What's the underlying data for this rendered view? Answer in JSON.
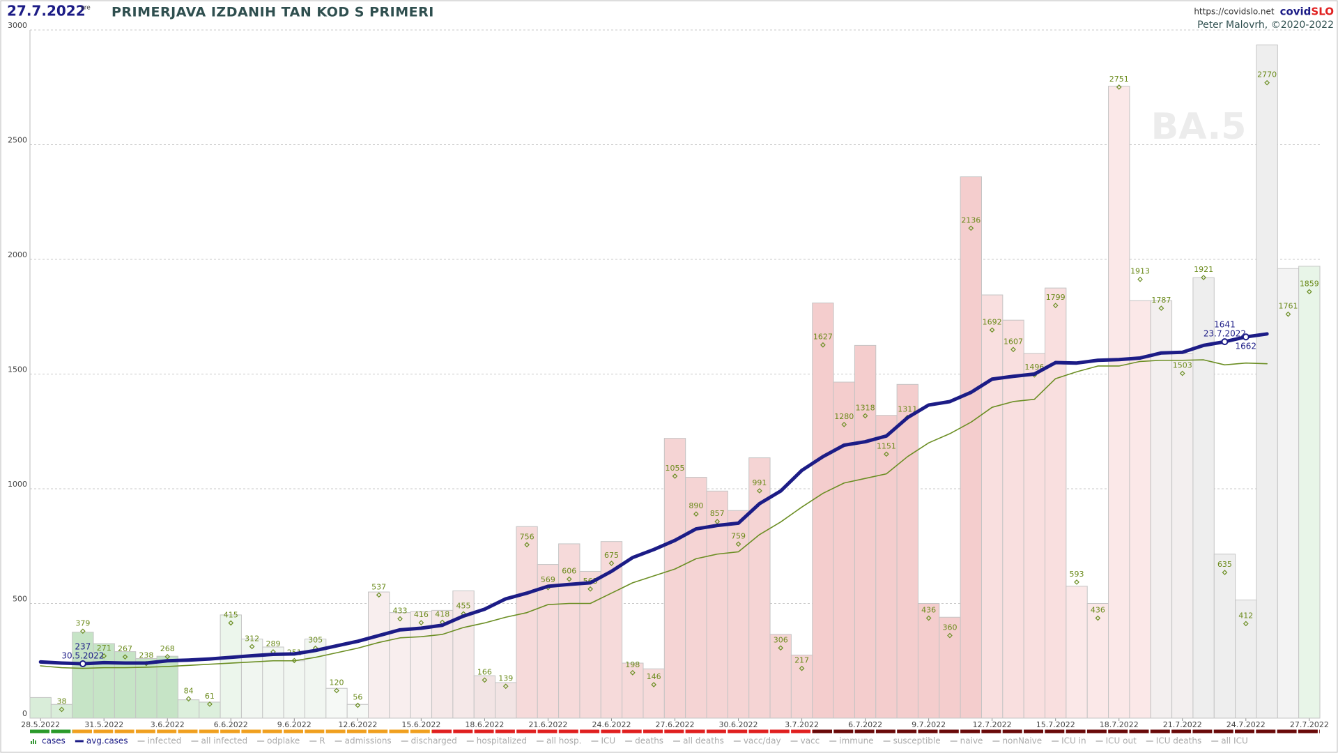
{
  "chart_data": {
    "type": "bar",
    "date": "27.7.2022",
    "weekday": "sre",
    "title": "PRIMERJAVA IZDANIH TAN KOD S PRIMERI",
    "url": "https://covidslo.net",
    "brand": "covid",
    "brand_accent": "SLO",
    "author": "Peter Malovrh, ©2020-2022",
    "watermark": "BA.5",
    "ylim": [
      0,
      3000
    ],
    "yticks": [
      0,
      500,
      1000,
      1500,
      2000,
      2500,
      3000
    ],
    "grid": true,
    "categories": [
      "28.5.2022",
      null,
      null,
      "31.5.2022",
      null,
      null,
      "3.6.2022",
      null,
      null,
      "6.6.2022",
      null,
      null,
      "9.6.2022",
      null,
      null,
      "12.6.2022",
      null,
      null,
      "15.6.2022",
      null,
      null,
      "18.6.2022",
      null,
      null,
      "21.6.2022",
      null,
      null,
      "24.6.2022",
      null,
      null,
      "27.6.2022",
      null,
      null,
      "30.6.2022",
      null,
      null,
      "3.7.2022",
      null,
      null,
      "6.7.2022",
      null,
      null,
      "9.7.2022",
      null,
      null,
      "12.7.2022",
      null,
      null,
      "15.7.2022",
      null,
      null,
      "18.7.2022",
      null,
      null,
      "21.7.2022",
      null,
      null,
      "24.7.2022",
      null,
      null,
      "27.7.2022"
    ],
    "series": [
      {
        "name": "cases",
        "type": "bar",
        "values": [
          90,
          60,
          375,
          325,
          290,
          260,
          270,
          80,
          70,
          450,
          345,
          310,
          250,
          345,
          130,
          60,
          550,
          460,
          465,
          470,
          555,
          185,
          155,
          835,
          670,
          760,
          640,
          770,
          240,
          215,
          1220,
          1050,
          990,
          905,
          1135,
          365,
          275,
          1810,
          1465,
          1625,
          1320,
          1455,
          500,
          440,
          2360,
          1845,
          1735,
          1590,
          1875,
          575,
          500,
          2755,
          1820,
          1820,
          1590,
          1920,
          715,
          515,
          2935,
          1960,
          1970
        ],
        "colors": [
          "#d9edd9",
          "#d9edd9",
          "#c6e4c6",
          "#c6e4c6",
          "#c6e4c6",
          "#c6e4c6",
          "#c6e4c6",
          "#dcefdc",
          "#dcefdc",
          "#ecf6ec",
          "#f1f6f1",
          "#f1f6f1",
          "#f1f6f1",
          "#f1f6f1",
          "#f6f9f6",
          "#f6f9f6",
          "#f8eeee",
          "#f8eeee",
          "#f8eeee",
          "#f5e8e8",
          "#f5e8e8",
          "#f2e4e4",
          "#f2e4e4",
          "#f6dada",
          "#f6dada",
          "#f6dada",
          "#f6dada",
          "#f6dada",
          "#f6dada",
          "#f6dada",
          "#f5d4d4",
          "#f5d4d4",
          "#f5d4d4",
          "#f5d4d4",
          "#f5d4d4",
          "#f5d4d4",
          "#f5d4d4",
          "#f4cdcd",
          "#f4cdcd",
          "#f4cdcd",
          "#f4cdcd",
          "#f4cdcd",
          "#f4cdcd",
          "#f4cdcd",
          "#f4cdcd",
          "#f9dfdf",
          "#f9dfdf",
          "#f9dfdf",
          "#f9dfdf",
          "#fbe8e8",
          "#fbe8e8",
          "#fbe8e8",
          "#fbe8e8",
          "#f3efef",
          "#f3efef",
          "#eeeeee",
          "#eeeeee",
          "#eeeeee",
          "#eeeeee",
          "#f3f3f3",
          "#e8f5e8"
        ],
        "legend_color": "#3a9a3a"
      },
      {
        "type": "scatter",
        "color": "#6b8e23",
        "values": [
          null,
          38,
          379,
          271,
          267,
          238,
          268,
          84,
          61,
          415,
          312,
          289,
          251,
          305,
          120,
          56,
          537,
          433,
          416,
          418,
          455,
          166,
          139,
          756,
          569,
          606,
          563,
          675,
          198,
          146,
          1055,
          890,
          857,
          759,
          991,
          306,
          217,
          1627,
          1280,
          1318,
          1151,
          1311,
          436,
          360,
          2136,
          1692,
          1607,
          1496,
          1799,
          593,
          436,
          2751,
          1913,
          1787,
          1503,
          1921,
          635,
          412,
          2770,
          1761,
          1859
        ]
      },
      {
        "name": "avg.cases",
        "type": "line",
        "color": "#1c1c86",
        "width": 5,
        "values": [
          245,
          240,
          237,
          242,
          240,
          240,
          250,
          253,
          258,
          265,
          272,
          278,
          280,
          295,
          315,
          335,
          360,
          385,
          392,
          405,
          445,
          475,
          520,
          545,
          575,
          583,
          590,
          640,
          700,
          735,
          775,
          825,
          840,
          850,
          935,
          990,
          1080,
          1140,
          1190,
          1205,
          1230,
          1310,
          1365,
          1380,
          1420,
          1478,
          1490,
          1500,
          1550,
          1548,
          1560,
          1563,
          1570,
          1592,
          1595,
          1625,
          1641,
          1662,
          1675,
          null,
          null
        ],
        "value_labels": [
          null,
          null,
          "237",
          null,
          null,
          null,
          null,
          null,
          null,
          null,
          null,
          null,
          null,
          null,
          null,
          null,
          null,
          null,
          null,
          null,
          null,
          null,
          null,
          null,
          null,
          null,
          null,
          null,
          null,
          null,
          null,
          null,
          null,
          null,
          null,
          null,
          null,
          null,
          null,
          null,
          null,
          null,
          null,
          null,
          null,
          null,
          null,
          null,
          null,
          null,
          null,
          null,
          null,
          null,
          null,
          null,
          "1641",
          "1662",
          null,
          null,
          null
        ],
        "point_labels": [
          null,
          null,
          "30.5.2022",
          null,
          null,
          null,
          null,
          null,
          null,
          null,
          null,
          null,
          null,
          null,
          null,
          null,
          null,
          null,
          null,
          null,
          null,
          null,
          null,
          null,
          null,
          null,
          null,
          null,
          null,
          null,
          null,
          null,
          null,
          null,
          null,
          null,
          null,
          null,
          null,
          null,
          null,
          null,
          null,
          null,
          null,
          null,
          null,
          null,
          null,
          null,
          null,
          null,
          null,
          null,
          null,
          null,
          "23.7.2022",
          null,
          null,
          null,
          null
        ]
      },
      {
        "type": "line",
        "color": "#6b8e23",
        "width": 1.6,
        "values": [
          228,
          220,
          217,
          220,
          220,
          222,
          225,
          230,
          235,
          240,
          245,
          250,
          250,
          265,
          285,
          305,
          330,
          350,
          355,
          365,
          395,
          415,
          440,
          460,
          495,
          500,
          500,
          545,
          590,
          620,
          650,
          695,
          715,
          725,
          800,
          855,
          920,
          980,
          1025,
          1045,
          1065,
          1140,
          1200,
          1240,
          1290,
          1355,
          1380,
          1390,
          1480,
          1510,
          1535,
          1535,
          1555,
          1560,
          1560,
          1562,
          1540,
          1548,
          1545,
          null,
          null
        ]
      }
    ],
    "legend_inactive": [
      "infected",
      "all infected",
      "odplake",
      "R",
      "admissions",
      "discharged",
      "hospitalized",
      "all hosp.",
      "ICU",
      "deaths",
      "all deaths",
      "vacc/day",
      "vacc",
      "immune",
      "susceptible",
      "naive",
      "nonNaive",
      "ICU in",
      "ICU out",
      "ICU deaths",
      "all ICU"
    ]
  }
}
